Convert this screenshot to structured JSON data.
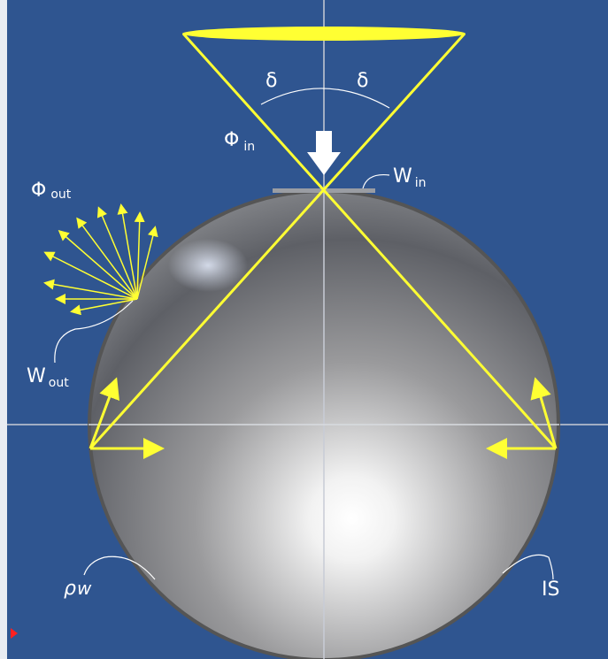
{
  "labels": {
    "delta_left": "δ",
    "delta_right": "δ",
    "phi_in": {
      "symbol": "Φ",
      "subscript": "in"
    },
    "w_in": {
      "symbol": "W",
      "subscript": "in"
    },
    "phi_out": {
      "symbol": "Φ",
      "subscript": "out"
    },
    "w_out": {
      "symbol": "W",
      "subscript": "out"
    },
    "rho_w": {
      "symbol": "ρ",
      "subscript": "w"
    },
    "is": "IS"
  }
}
